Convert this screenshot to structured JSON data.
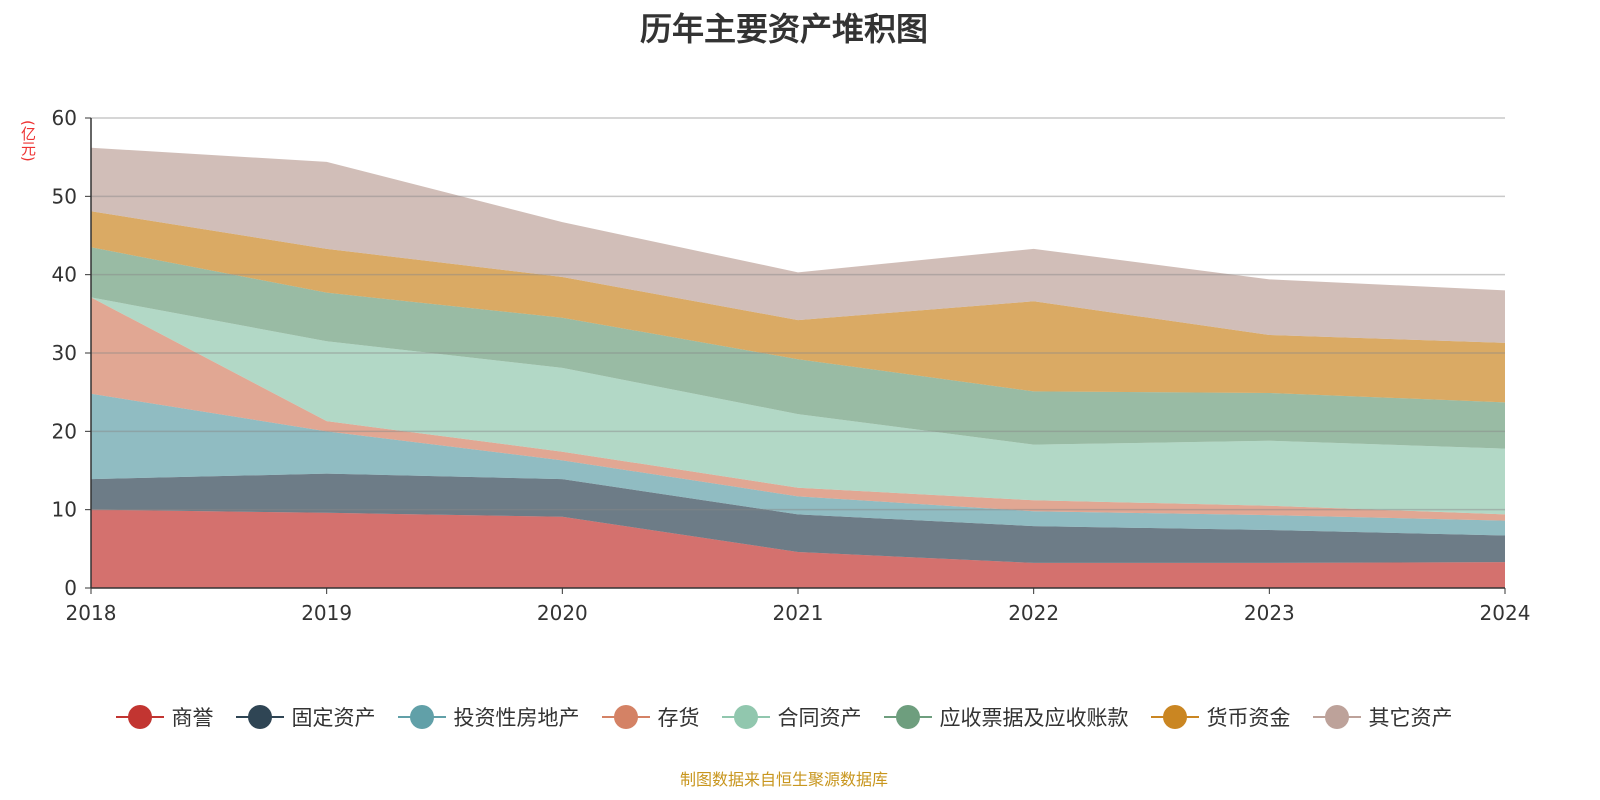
{
  "title": "历年主要资产堆积图",
  "unit": "(亿元)",
  "source": "制图数据来自恒生聚源数据库",
  "chart_data": {
    "type": "area",
    "stacked": true,
    "title": "历年主要资产堆积图",
    "ylabel": "(亿元)",
    "ylim": [
      0,
      60
    ],
    "yticks": [
      "0",
      "10",
      "20",
      "30",
      "40",
      "50",
      "60"
    ],
    "categories": [
      "2018",
      "2019",
      "2020",
      "2021",
      "2022",
      "2023",
      "2024"
    ],
    "legend_position": "bottom",
    "series": [
      {
        "name": "商誉",
        "color": "#c23531",
        "values": [
          10.0,
          9.6,
          9.1,
          4.6,
          3.2,
          3.2,
          3.3
        ]
      },
      {
        "name": "固定资产",
        "color": "#2f4554",
        "values": [
          3.9,
          5.0,
          4.8,
          4.8,
          4.7,
          4.2,
          3.4
        ]
      },
      {
        "name": "投资性房地产",
        "color": "#61a0a8",
        "values": [
          10.9,
          5.4,
          2.4,
          2.3,
          1.9,
          1.9,
          1.9
        ]
      },
      {
        "name": "存货",
        "color": "#d48265",
        "values": [
          12.3,
          1.3,
          1.1,
          1.1,
          1.4,
          1.2,
          0.8
        ]
      },
      {
        "name": "合同资产",
        "color": "#91c7ae",
        "values": [
          0.0,
          10.2,
          10.7,
          9.4,
          7.1,
          8.3,
          8.4
        ]
      },
      {
        "name": "应收票据及应收账款",
        "color": "#6e9e7e",
        "values": [
          6.4,
          6.2,
          6.4,
          7.0,
          6.8,
          6.1,
          5.9
        ]
      },
      {
        "name": "货币资金",
        "color": "#ca8622",
        "values": [
          4.6,
          5.6,
          5.2,
          5.0,
          11.5,
          7.4,
          7.6
        ]
      },
      {
        "name": "其它资产",
        "color": "#bda29a",
        "values": [
          8.1,
          11.1,
          7.0,
          6.1,
          6.7,
          7.1,
          6.7
        ]
      }
    ]
  }
}
